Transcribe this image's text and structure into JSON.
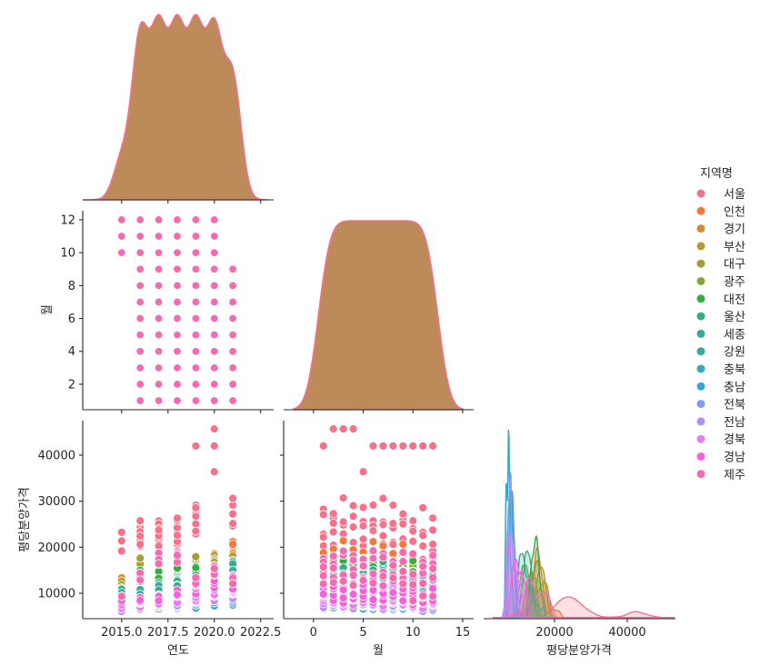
{
  "chart_data": {
    "type": "pairplot",
    "layout": "corner",
    "variables": [
      "연도",
      "월",
      "평당분양가격"
    ],
    "hue_title": "지역명",
    "regions": [
      "서울",
      "인천",
      "경기",
      "부산",
      "대구",
      "광주",
      "대전",
      "울산",
      "세종",
      "강원",
      "충북",
      "충남",
      "전북",
      "전남",
      "경북",
      "경남",
      "제주"
    ],
    "colors": [
      "#f5728a",
      "#f3793b",
      "#d48c32",
      "#bb9832",
      "#a39f31",
      "#86a731",
      "#36ae3f",
      "#34ae84",
      "#35ab9b",
      "#37aaa8",
      "#38a8b7",
      "#3ba3e0",
      "#7e9af4",
      "#b48ff4",
      "#e37ff2",
      "#f461dd",
      "#f56ab0"
    ],
    "diag_fill_color": "#bd8a5a",
    "years": [
      2015,
      2016,
      2017,
      2018,
      2019,
      2020,
      2021
    ],
    "months_by_year": {
      "2015": [
        10,
        11,
        12
      ],
      "2016": [
        1,
        2,
        3,
        4,
        5,
        6,
        7,
        8,
        9,
        10,
        11,
        12
      ],
      "2017": [
        1,
        2,
        3,
        4,
        5,
        6,
        7,
        8,
        9,
        10,
        11,
        12
      ],
      "2018": [
        1,
        2,
        3,
        4,
        5,
        6,
        7,
        8,
        9,
        10,
        11,
        12
      ],
      "2019": [
        1,
        2,
        3,
        4,
        5,
        6,
        7,
        8,
        9,
        10,
        11,
        12
      ],
      "2020": [
        1,
        2,
        3,
        4,
        5,
        6,
        7,
        8,
        9,
        10,
        11,
        12
      ],
      "2021": [
        1,
        2,
        3,
        4,
        5,
        6,
        7,
        8,
        9
      ]
    },
    "approx_price_by_region_year": {
      "서울": [
        21000,
        23000,
        23000,
        23500,
        26000,
        30000,
        28000
      ],
      "인천": [
        12000,
        15500,
        16000,
        15000,
        14500,
        16000,
        20000
      ],
      "경기": [
        12500,
        14500,
        14000,
        14500,
        16500,
        17500,
        16500
      ],
      "부산": [
        12000,
        14000,
        13500,
        14000,
        17000,
        17500,
        17000
      ],
      "대구": [
        11500,
        16500,
        12500,
        13500,
        16800,
        16000,
        16000
      ],
      "광주": [
        10500,
        11500,
        10500,
        12000,
        13000,
        14000,
        14500
      ],
      "대전": [
        10000,
        14000,
        14200,
        16000,
        14800,
        14500,
        15500
      ],
      "울산": [
        10500,
        12500,
        11500,
        12500,
        13000,
        13500,
        16000
      ],
      "세종": [
        9500,
        10500,
        11000,
        11000,
        12000,
        13000,
        14000
      ],
      "강원": [
        7000,
        7500,
        7500,
        7800,
        8000,
        8500,
        9000
      ],
      "충북": [
        6800,
        7000,
        7000,
        7200,
        7000,
        7800,
        8000
      ],
      "충남": [
        7500,
        7800,
        8000,
        8000,
        8500,
        9000,
        9500
      ],
      "전북": [
        7000,
        7200,
        7500,
        7500,
        8000,
        8500,
        8500
      ],
      "전남": [
        6500,
        7000,
        7500,
        7800,
        8500,
        9000,
        9500
      ],
      "경북": [
        7000,
        7500,
        8000,
        8500,
        9000,
        10000,
        10500
      ],
      "경남": [
        8000,
        8500,
        9000,
        10000,
        10500,
        12000,
        11500
      ],
      "제주": [
        9000,
        13500,
        17500,
        18000,
        12500,
        15000,
        13000
      ]
    },
    "seoul_outliers": [
      {
        "year": 2019,
        "month": 12,
        "price": 42000
      },
      {
        "year": 2020,
        "month": 1,
        "price": 42000
      },
      {
        "year": 2020,
        "month": 2,
        "price": 45700
      },
      {
        "year": 2020,
        "month": 3,
        "price": 45700
      },
      {
        "year": 2020,
        "month": 4,
        "price": 45700
      },
      {
        "year": 2020,
        "month": 5,
        "price": 36400
      },
      {
        "year": 2020,
        "month": 6,
        "price": 42000
      },
      {
        "year": 2020,
        "month": 7,
        "price": 42000
      },
      {
        "year": 2020,
        "month": 8,
        "price": 42000
      },
      {
        "year": 2020,
        "month": 9,
        "price": 42000
      },
      {
        "year": 2020,
        "month": 10,
        "price": 42000
      },
      {
        "year": 2020,
        "month": 11,
        "price": 42000
      },
      {
        "year": 2020,
        "month": 12,
        "price": 42000
      }
    ],
    "axes": {
      "year": {
        "label": "연도",
        "lim": [
          2012.9,
          2023.2
        ],
        "ticks": [
          2015.0,
          2017.5,
          2020.0,
          2022.5
        ],
        "tick_labels": [
          "2015.0",
          "2017.5",
          "2020.0",
          "2022.5"
        ]
      },
      "month": {
        "label": "월",
        "lim_x": [
          -3,
          16.1
        ],
        "lim_y": [
          0.45,
          12.55
        ],
        "x_ticks": [
          0,
          5,
          10,
          15
        ],
        "x_tick_labels": [
          "0",
          "5",
          "10",
          "15"
        ],
        "y_ticks": [
          2,
          4,
          6,
          8,
          10,
          12
        ],
        "y_tick_labels": [
          "2",
          "4",
          "6",
          "8",
          "10",
          "12"
        ]
      },
      "price": {
        "label": "평당분양가격",
        "lim_x": [
          500,
          53250
        ],
        "lim_y": [
          4480,
          47500
        ],
        "x_ticks": [
          20000,
          40000
        ],
        "x_tick_labels": [
          "20000",
          "40000"
        ],
        "y_ticks": [
          10000,
          20000,
          30000,
          40000
        ],
        "y_tick_labels": [
          "10000",
          "20000",
          "30000",
          "40000"
        ]
      }
    },
    "legend": "right"
  }
}
